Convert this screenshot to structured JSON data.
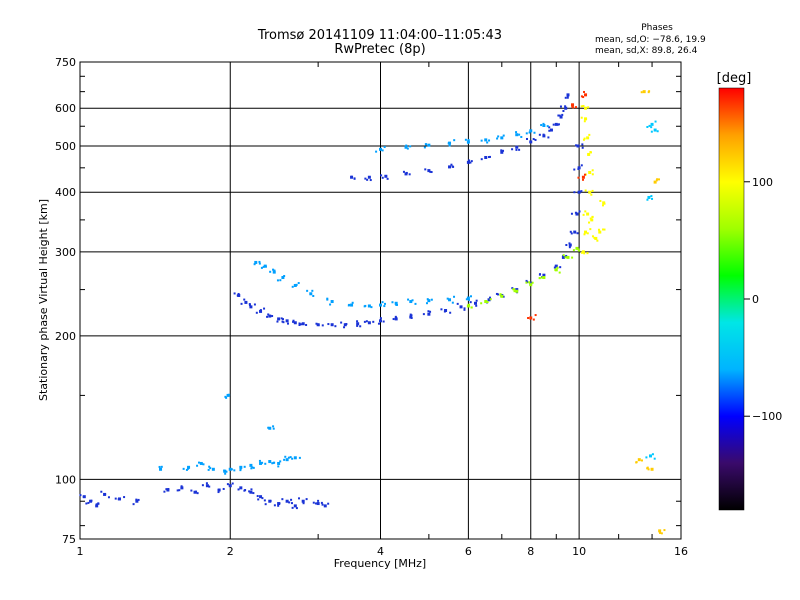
{
  "chart_data": {
    "type": "scatter",
    "title": "Tromsø 20141109 11:04:00–11:05:43",
    "subtitle": "RwPretec (8p)",
    "phase_stats": {
      "heading": "Phases",
      "line_o": "mean, sd,O: −78.6, 19.9",
      "line_x": "mean, sd,X:  89.8, 26.4"
    },
    "xlabel": "Frequency [MHz]",
    "ylabel": "Stationary phase Virtual Height [km]",
    "x_scale": "log",
    "y_scale": "log",
    "xlim": [
      1,
      16
    ],
    "ylim": [
      75,
      750
    ],
    "x_ticks": [
      1,
      2,
      4,
      6,
      8,
      10,
      16
    ],
    "x_tick_labels": [
      "1",
      "2",
      "4",
      "6",
      "8",
      "10",
      "16"
    ],
    "y_ticks": [
      75,
      100,
      200,
      300,
      400,
      500,
      600,
      750
    ],
    "y_tick_labels": [
      "75",
      "100",
      "200",
      "300",
      "400",
      "500",
      "600",
      "750"
    ],
    "grid": true,
    "colorbar": {
      "label": "[deg]",
      "range": [
        -180,
        180
      ],
      "ticks": [
        100,
        0,
        -100
      ],
      "tick_labels": [
        "100",
        "0",
        "−100"
      ],
      "stops": [
        "#000000",
        "#3a0a6b",
        "#0000ff",
        "#00b4ff",
        "#00e6e6",
        "#00ff00",
        "#a0ff00",
        "#ffff00",
        "#ffa000",
        "#ff0000"
      ]
    },
    "series": [
      {
        "color_hint": "#1a33d6",
        "points": [
          [
            1.02,
            92
          ],
          [
            1.05,
            90
          ],
          [
            1.08,
            88
          ],
          [
            1.12,
            93
          ],
          [
            1.2,
            91
          ],
          [
            1.3,
            90
          ],
          [
            1.5,
            95
          ],
          [
            1.6,
            96
          ],
          [
            1.7,
            94
          ],
          [
            1.8,
            97
          ],
          [
            1.9,
            95
          ],
          [
            2.0,
            97
          ],
          [
            2.1,
            96
          ],
          [
            2.2,
            94
          ],
          [
            2.3,
            92
          ],
          [
            2.4,
            90
          ],
          [
            2.5,
            89
          ],
          [
            2.6,
            90
          ],
          [
            2.7,
            88
          ],
          [
            2.8,
            90
          ],
          [
            3.0,
            89
          ],
          [
            3.1,
            88
          ]
        ]
      },
      {
        "color_hint": "#00a0ff",
        "points": [
          [
            1.45,
            105
          ],
          [
            1.65,
            106
          ],
          [
            1.75,
            108
          ],
          [
            1.85,
            105
          ],
          [
            1.95,
            104
          ],
          [
            2.0,
            105
          ],
          [
            2.1,
            106
          ],
          [
            2.2,
            107
          ],
          [
            2.3,
            108
          ],
          [
            2.4,
            109
          ],
          [
            2.5,
            108
          ],
          [
            2.6,
            110
          ],
          [
            2.7,
            111
          ],
          [
            1.98,
            150
          ],
          [
            2.4,
            128
          ]
        ]
      },
      {
        "color_hint": "#1a33d6",
        "points": [
          [
            2.08,
            243
          ],
          [
            2.15,
            235
          ],
          [
            2.2,
            230
          ],
          [
            2.3,
            225
          ],
          [
            2.4,
            220
          ],
          [
            2.5,
            217
          ],
          [
            2.6,
            215
          ],
          [
            2.7,
            213
          ],
          [
            2.8,
            212
          ],
          [
            3.0,
            211
          ],
          [
            3.2,
            211
          ],
          [
            3.4,
            211
          ],
          [
            3.6,
            212
          ],
          [
            3.8,
            213
          ],
          [
            4.0,
            215
          ],
          [
            4.3,
            217
          ],
          [
            4.6,
            219
          ],
          [
            5.0,
            222
          ],
          [
            5.4,
            226
          ],
          [
            5.8,
            230
          ],
          [
            6.2,
            234
          ],
          [
            6.6,
            238
          ],
          [
            7.0,
            243
          ],
          [
            7.5,
            250
          ],
          [
            8.0,
            258
          ],
          [
            8.5,
            268
          ],
          [
            9.0,
            280
          ],
          [
            9.3,
            292
          ],
          [
            9.6,
            310
          ],
          [
            9.8,
            330
          ],
          [
            9.9,
            360
          ],
          [
            10.0,
            400
          ],
          [
            10.0,
            450
          ],
          [
            9.95,
            500
          ]
        ]
      },
      {
        "color_hint": "#00a0ff",
        "points": [
          [
            2.25,
            285
          ],
          [
            2.35,
            280
          ],
          [
            2.45,
            272
          ],
          [
            2.55,
            265
          ],
          [
            2.7,
            255
          ],
          [
            2.9,
            245
          ],
          [
            3.2,
            236
          ],
          [
            3.5,
            232
          ],
          [
            3.8,
            231
          ],
          [
            4.0,
            232
          ],
          [
            4.3,
            234
          ],
          [
            4.6,
            236
          ],
          [
            5.0,
            237
          ],
          [
            5.5,
            238
          ],
          [
            6.0,
            240
          ]
        ]
      },
      {
        "color_hint": "#a0ff00",
        "points": [
          [
            6.0,
            231
          ],
          [
            6.5,
            236
          ],
          [
            7.0,
            242
          ],
          [
            7.5,
            248
          ],
          [
            8.0,
            256
          ],
          [
            8.5,
            265
          ],
          [
            9.0,
            275
          ],
          [
            9.5,
            292
          ],
          [
            9.9,
            305
          ]
        ]
      },
      {
        "color_hint": "#ffff00",
        "points": [
          [
            10.2,
            300
          ],
          [
            10.3,
            330
          ],
          [
            10.4,
            360
          ],
          [
            10.5,
            400
          ],
          [
            10.5,
            440
          ],
          [
            10.45,
            480
          ],
          [
            10.4,
            520
          ],
          [
            10.3,
            570
          ],
          [
            10.3,
            600
          ],
          [
            10.6,
            350
          ],
          [
            10.8,
            320
          ],
          [
            11.0,
            330
          ],
          [
            11.2,
            380
          ]
        ]
      },
      {
        "color_hint": "#1a33d6",
        "points": [
          [
            3.5,
            430
          ],
          [
            3.8,
            430
          ],
          [
            4.1,
            432
          ],
          [
            4.5,
            437
          ],
          [
            5.0,
            444
          ],
          [
            5.5,
            452
          ],
          [
            6.0,
            462
          ],
          [
            6.5,
            473
          ],
          [
            7.0,
            485
          ],
          [
            7.5,
            497
          ],
          [
            8.0,
            510
          ],
          [
            8.5,
            525
          ],
          [
            8.8,
            540
          ],
          [
            9.0,
            555
          ],
          [
            9.2,
            575
          ],
          [
            9.4,
            600
          ],
          [
            9.5,
            640
          ]
        ]
      },
      {
        "color_hint": "#00a0ff",
        "points": [
          [
            4.0,
            492
          ],
          [
            4.5,
            497
          ],
          [
            5.0,
            502
          ],
          [
            5.5,
            507
          ],
          [
            6.0,
            510
          ],
          [
            6.5,
            515
          ],
          [
            7.0,
            520
          ],
          [
            7.5,
            528
          ],
          [
            8.0,
            538
          ],
          [
            8.5,
            552
          ]
        ]
      },
      {
        "color_hint": "#ff3300",
        "points": [
          [
            10.3,
            640
          ],
          [
            9.7,
            610
          ],
          [
            8.0,
            218
          ],
          [
            10.2,
            430
          ]
        ]
      },
      {
        "color_hint": "#ffcc00",
        "points": [
          [
            13.2,
            110
          ],
          [
            14.0,
            105
          ],
          [
            14.2,
            420
          ],
          [
            14.5,
            78
          ],
          [
            13.5,
            650
          ]
        ]
      },
      {
        "color_hint": "#00c8ff",
        "points": [
          [
            14.0,
            555
          ],
          [
            14.2,
            540
          ],
          [
            13.8,
            390
          ],
          [
            13.9,
            112
          ]
        ]
      }
    ]
  }
}
